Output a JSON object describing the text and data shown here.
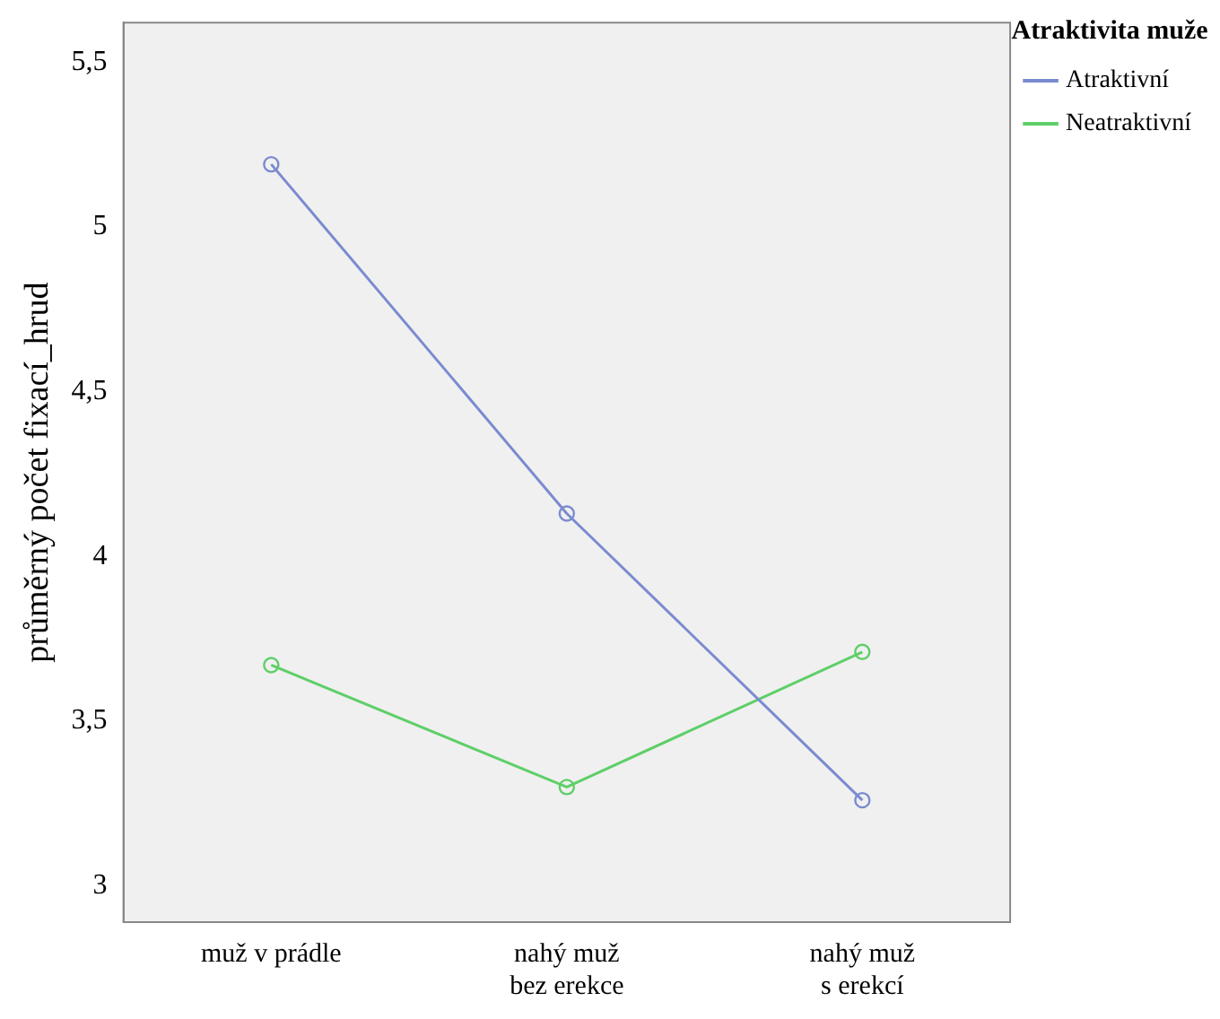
{
  "chart_data": {
    "type": "line",
    "ylabel": "průměrný počet fixací_hrud",
    "legend_title": "Atraktivita muže",
    "categories": [
      "muž v prádle",
      "nahý muž\nbez erekce",
      "nahý muž\ns erekcí"
    ],
    "series": [
      {
        "name": "Atraktivní",
        "color": "#7b8bd0",
        "values": [
          5.19,
          4.13,
          3.26
        ]
      },
      {
        "name": "Neatraktivní",
        "color": "#5ecf68",
        "values": [
          3.67,
          3.3,
          3.71
        ]
      }
    ],
    "ylim": [
      2.89,
      5.62
    ],
    "yticks": [
      3,
      {
        "value": 3.5,
        "label": "3,5"
      },
      4,
      {
        "value": 4.5,
        "label": "4,5"
      },
      5,
      {
        "value": 5.5,
        "label": "5,5"
      }
    ],
    "grid": false,
    "legend": "top right",
    "marker": "circle",
    "line_style": "solid"
  }
}
